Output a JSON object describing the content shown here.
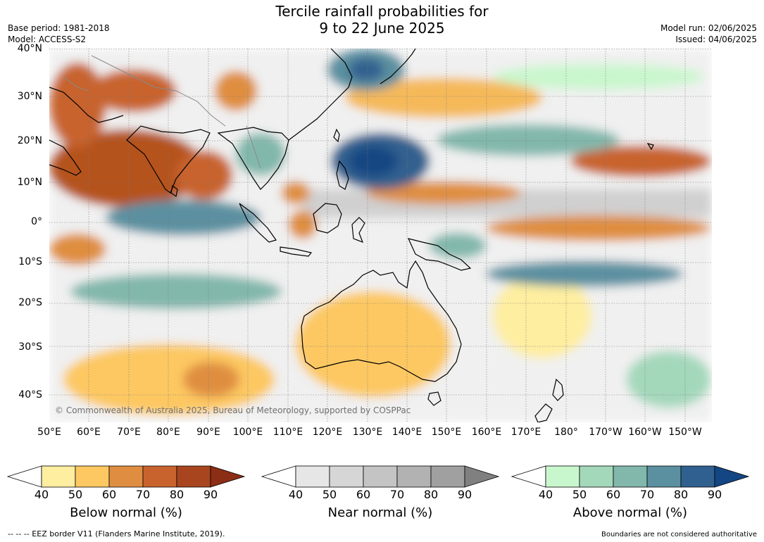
{
  "title": {
    "line1": "Tercile rainfall probabilities for",
    "line2": "9 to 22 June 2025"
  },
  "meta_left": {
    "base_period": "Base period: 1981-2018",
    "model": "Model: ACCESS-S2"
  },
  "meta_right": {
    "model_run": "Model run: 02/06/2025",
    "issued": "Issued: 04/06/2025"
  },
  "map": {
    "lat_labels": [
      "40°N",
      "30°N",
      "20°N",
      "10°N",
      "0°",
      "10°S",
      "20°S",
      "30°S",
      "40°S"
    ],
    "lon_labels": [
      "50°E",
      "60°E",
      "70°E",
      "80°E",
      "90°E",
      "100°E",
      "110°E",
      "120°E",
      "130°E",
      "140°E",
      "150°E",
      "160°E",
      "170°E",
      "180°",
      "170°W",
      "160°W",
      "150°W"
    ],
    "copyright": "© Commonwealth of Australia 2025, Bureau of Meteorology, supported by COSPPac"
  },
  "colorbars": [
    {
      "title": "Below normal (%)",
      "ticks": [
        "40",
        "50",
        "60",
        "70",
        "80",
        "90"
      ],
      "colors": [
        "#ffffff",
        "#feeea0",
        "#fdc862",
        "#df8e41",
        "#c8632e",
        "#a8451f",
        "#8c2d15"
      ]
    },
    {
      "title": "Near normal (%)",
      "ticks": [
        "40",
        "50",
        "60",
        "70",
        "80",
        "90"
      ],
      "colors": [
        "#ffffff",
        "#e6e6e6",
        "#d6d6d6",
        "#c4c4c4",
        "#b2b2b2",
        "#a0a0a0",
        "#808080"
      ]
    },
    {
      "title": "Above normal (%)",
      "ticks": [
        "40",
        "50",
        "60",
        "70",
        "80",
        "90"
      ],
      "colors": [
        "#ffffff",
        "#c9f7cd",
        "#a4d8bb",
        "#82b7ac",
        "#5b90a0",
        "#30608f",
        "#134683"
      ]
    }
  ],
  "footer": {
    "eez_note": "--  --  -- EEZ border V11 (Flanders Marine Institute, 2019).",
    "boundaries_note": "Boundaries are not considered authoritative"
  }
}
